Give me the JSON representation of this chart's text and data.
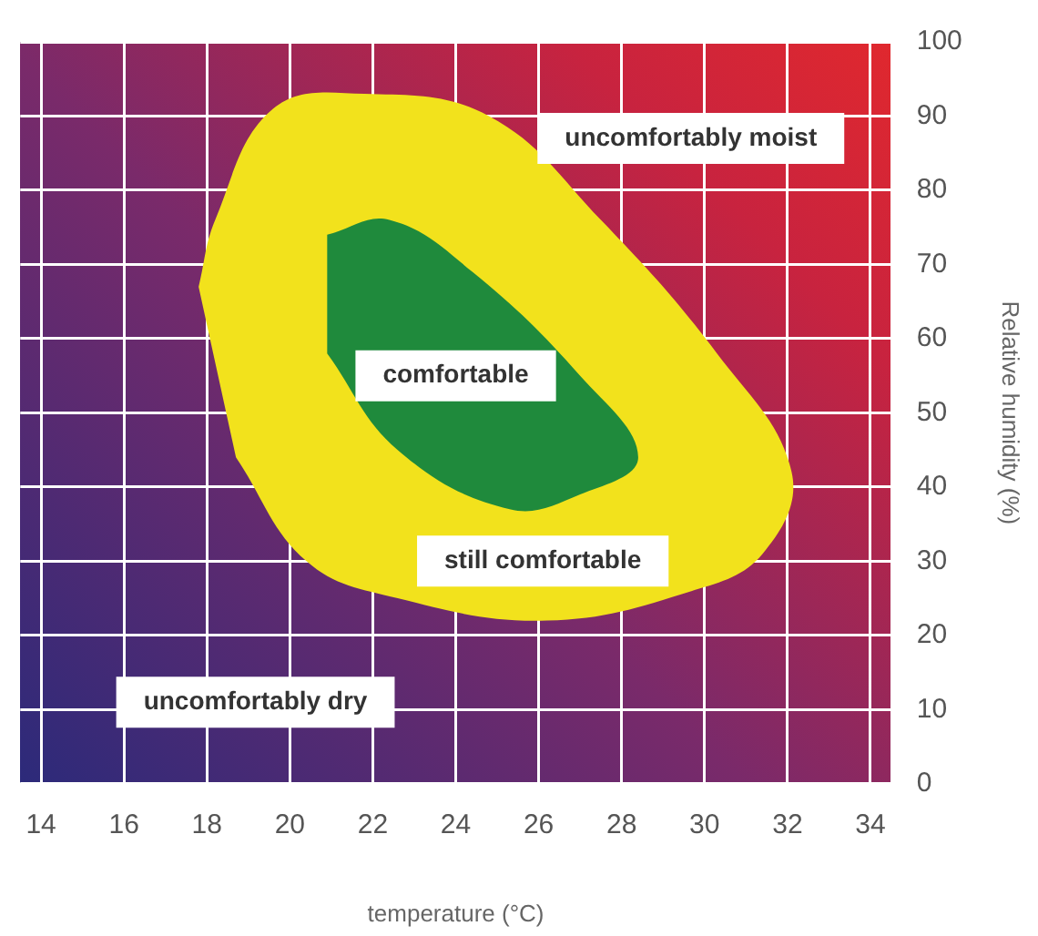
{
  "chart_data": {
    "type": "area",
    "xlabel": "temperature (°C)",
    "ylabel": "Relative humidity (%)",
    "xlim": [
      13.5,
      34.5
    ],
    "xticks": [
      14,
      16,
      18,
      20,
      22,
      24,
      26,
      28,
      30,
      32,
      34
    ],
    "ylim": [
      0,
      100
    ],
    "yticks": [
      0,
      10,
      20,
      30,
      40,
      50,
      60,
      70,
      80,
      90,
      100
    ],
    "grid": true,
    "legend": false,
    "marker": "none",
    "series": [
      {
        "color": "#f2e21c",
        "x": [
          17.8,
          18.2,
          19.6,
          21.8,
          24.8,
          27.5,
          30.3,
          32.1,
          31.4,
          29.7,
          26.2,
          22.6,
          20.4,
          18.7
        ],
        "values": [
          67,
          76,
          91,
          93,
          90,
          76,
          58,
          42,
          31,
          26,
          22,
          25,
          30,
          44
        ]
      },
      {
        "color": "#1f8a3c",
        "x": [
          20.9,
          22.4,
          24.4,
          27.0,
          28.4,
          27.0,
          25.3,
          22.6,
          20.9
        ],
        "values": [
          74,
          76,
          69,
          55,
          44,
          39,
          37,
          45,
          58
        ]
      }
    ],
    "annotations": [
      "uncomfortably moist",
      "comfortable",
      "still comfortable",
      "uncomfortably dry"
    ]
  }
}
